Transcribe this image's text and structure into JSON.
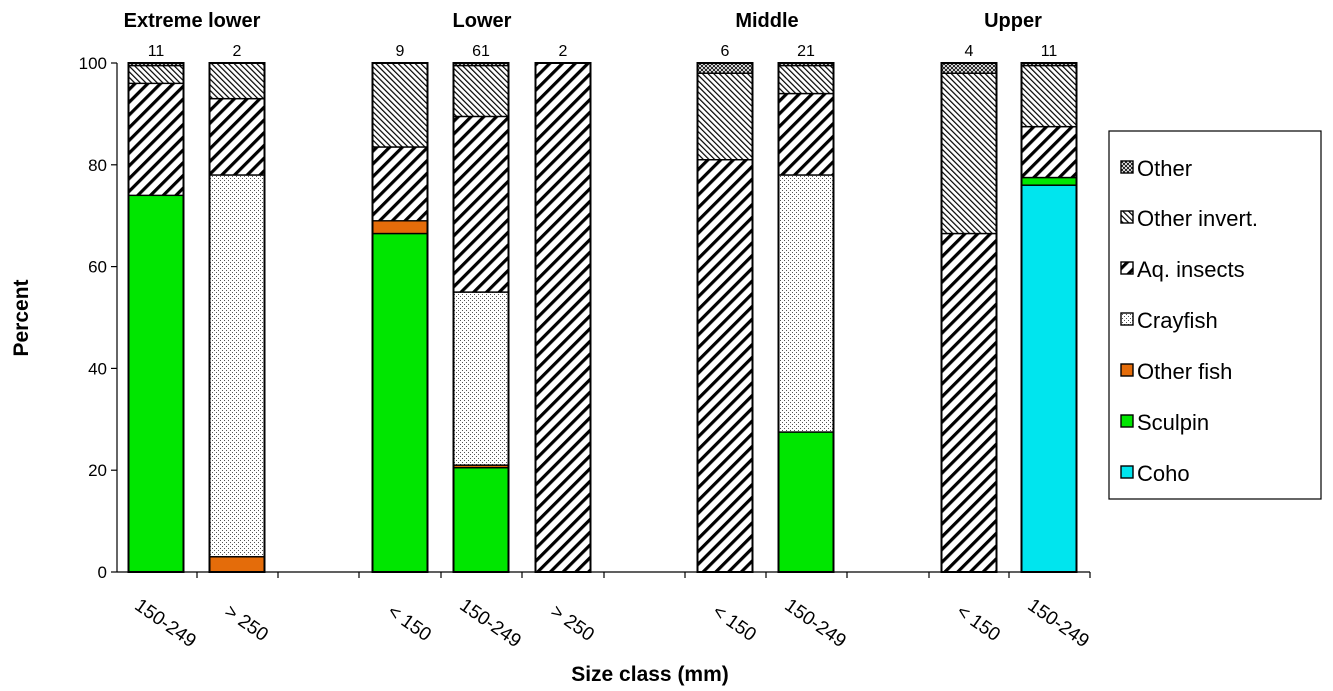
{
  "chart_data": {
    "type": "bar",
    "stacked": true,
    "xlabel": "Size class (mm)",
    "ylabel": "Percent",
    "ylim": [
      0,
      100
    ],
    "yticks": [
      0,
      20,
      40,
      60,
      80,
      100
    ],
    "grid": false,
    "legend_position": "right",
    "series": [
      {
        "name": "Coho",
        "color": "#00e5ee",
        "fill": "solid"
      },
      {
        "name": "Sculpin",
        "color": "#00e600",
        "fill": "solid"
      },
      {
        "name": "Other fish",
        "color": "#e46c0a",
        "fill": "solid"
      },
      {
        "name": "Crayfish",
        "color": "#ffffff",
        "fill": "dots"
      },
      {
        "name": "Aq. insects",
        "color": "#ffffff",
        "fill": "diagonal-wide"
      },
      {
        "name": "Other invert.",
        "color": "#ffffff",
        "fill": "diagonal-narrow"
      },
      {
        "name": "Other",
        "color": "#ffffff",
        "fill": "crosshatch"
      }
    ],
    "groups": [
      {
        "title": "Extreme lower",
        "bars": [
          {
            "category": "150-249",
            "n": "11",
            "values": [
              0,
              74,
              0,
              0,
              22,
              3.5,
              0.5
            ]
          },
          {
            "category": "> 250",
            "n": "2",
            "values": [
              0,
              0,
              3,
              75,
              15,
              7,
              0
            ]
          }
        ]
      },
      {
        "title": "Lower",
        "bars": [
          {
            "category": "< 150",
            "n": "9",
            "values": [
              0,
              66.5,
              2.5,
              0,
              14.5,
              16.5,
              0
            ]
          },
          {
            "category": "150-249",
            "n": "61",
            "values": [
              0,
              20.5,
              0.5,
              34,
              34.5,
              10,
              0.5
            ]
          },
          {
            "category": "> 250",
            "n": "2",
            "values": [
              0,
              0,
              0,
              0,
              100,
              0,
              0
            ]
          }
        ]
      },
      {
        "title": "Middle",
        "bars": [
          {
            "category": "< 150",
            "n": "6",
            "values": [
              0,
              0,
              0,
              0,
              81,
              17,
              2
            ]
          },
          {
            "category": "150-249",
            "n": "21",
            "values": [
              0,
              27.5,
              0,
              50.5,
              16,
              5.5,
              0.5
            ]
          }
        ]
      },
      {
        "title": "Upper",
        "bars": [
          {
            "category": "< 150",
            "n": "4",
            "values": [
              0,
              0,
              0,
              0,
              66.5,
              31.5,
              2
            ]
          },
          {
            "category": "150-249",
            "n": "11",
            "values": [
              76,
              1.5,
              0,
              0,
              10,
              12,
              0.5
            ]
          }
        ]
      }
    ]
  }
}
